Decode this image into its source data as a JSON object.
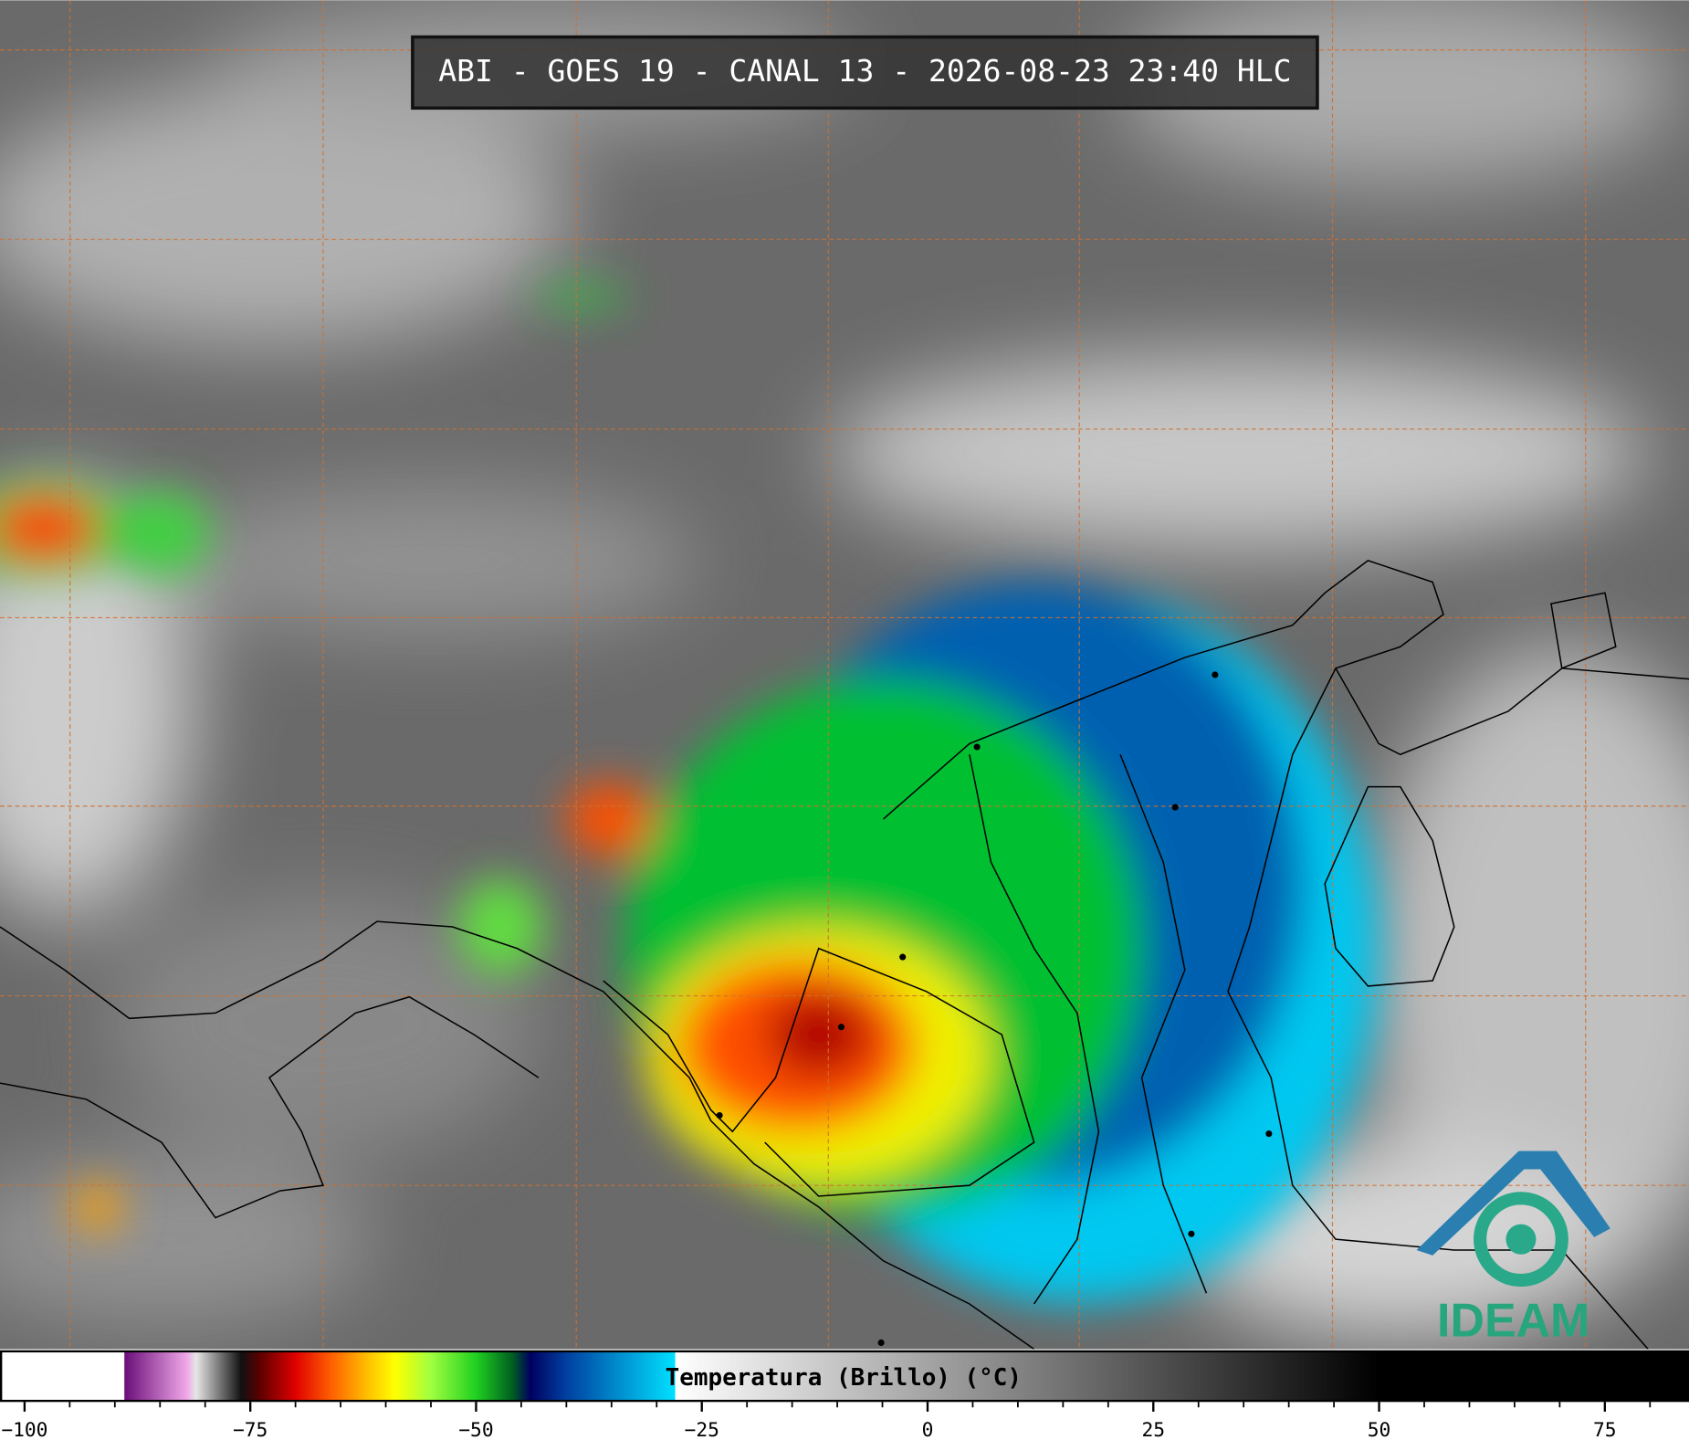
{
  "title": "ABI - GOES 19 - CANAL 13 - 2026-08-23 23:40 HLC",
  "logo": "IDEAM",
  "colorbar": {
    "label": "Temperatura (Brillo) (°C)",
    "lim": [
      -102.6,
      84.2
    ],
    "ticks": [
      {
        "value": -100,
        "label": "−100"
      },
      {
        "value": -75,
        "label": "−75"
      },
      {
        "value": -50,
        "label": "−50"
      },
      {
        "value": -25,
        "label": "−25"
      },
      0,
      25,
      50,
      75
    ],
    "minor_ticks": [
      -95,
      -90,
      -85,
      -80,
      -70,
      -65,
      -60,
      -55,
      -45,
      -40,
      -35,
      -30,
      -20,
      -15,
      -10,
      -5,
      5,
      10,
      15,
      20,
      30,
      35,
      40,
      45,
      55,
      60,
      65,
      70,
      80
    ],
    "colormap": [
      {
        "value": -102.6,
        "color": "#ffffff"
      },
      {
        "value": -89,
        "color": "#ffffff"
      },
      {
        "value": -88.9,
        "color": "#6b0f7a"
      },
      {
        "value": -82,
        "color": "#f0a8e8"
      },
      {
        "value": -81,
        "color": "#e6e6e6"
      },
      {
        "value": -76,
        "color": "#111111"
      },
      {
        "value": -74,
        "color": "#5a0000"
      },
      {
        "value": -70,
        "color": "#e00000"
      },
      {
        "value": -66,
        "color": "#ff6000"
      },
      {
        "value": -62,
        "color": "#ffc000"
      },
      {
        "value": -59,
        "color": "#ffff00"
      },
      {
        "value": -55,
        "color": "#a0ff40"
      },
      {
        "value": -50,
        "color": "#20d020"
      },
      {
        "value": -46,
        "color": "#006020"
      },
      {
        "value": -44,
        "color": "#000060"
      },
      {
        "value": -40,
        "color": "#0040a0"
      },
      {
        "value": -34,
        "color": "#0090d0"
      },
      {
        "value": -28,
        "color": "#00e0ff"
      },
      {
        "value": -27.9,
        "color": "#ffffff"
      },
      {
        "value": 50,
        "color": "#000000"
      },
      {
        "value": 84.2,
        "color": "#000000"
      }
    ]
  }
}
